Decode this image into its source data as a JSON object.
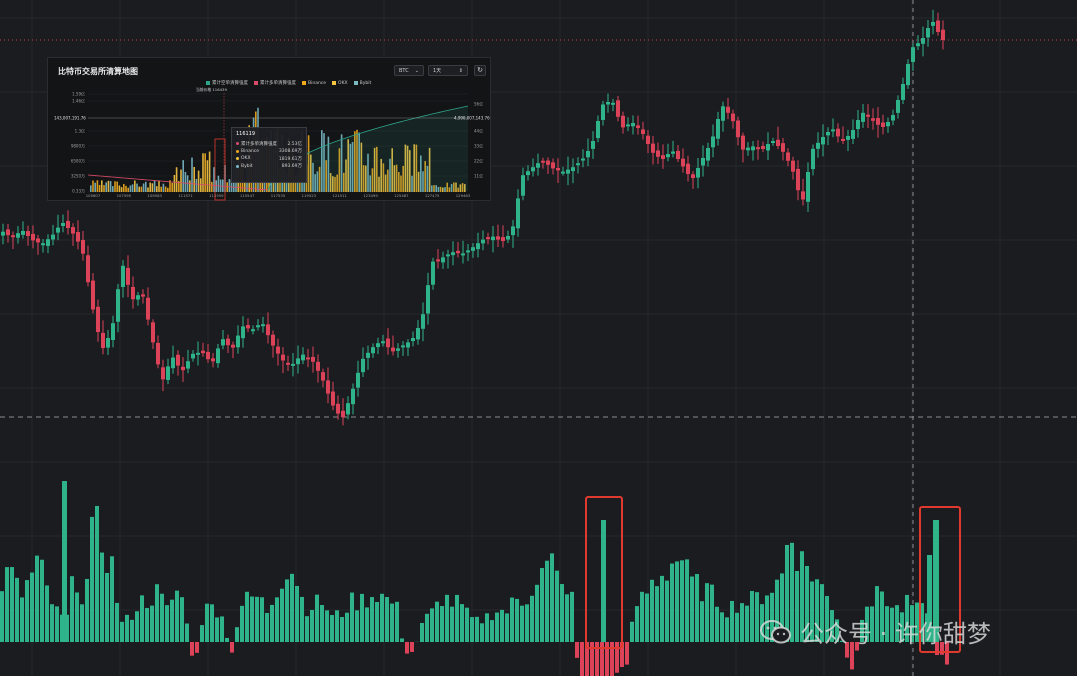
{
  "colors": {
    "background": "#1b1c20",
    "up": "#2fb388",
    "down": "#dc4258",
    "highlight_box": "#e03a2e",
    "grid": "#26282c",
    "inset_long": "#2ea58a",
    "inset_short": "#d74b6a",
    "inset_binance": "#f0a81c",
    "inset_okx": "#f5c542",
    "inset_bybit": "#7ab8c4"
  },
  "chart_data": [
    {
      "type": "candlestick",
      "title": "",
      "legend": "none",
      "grid": true,
      "note": "Values read relative to the embedded inset scale; the main chart prints no axis labels",
      "ohlc_sampled": [
        [
          0,
          236,
          231,
          225,
          243
        ],
        [
          10,
          232,
          238,
          226,
          245
        ],
        [
          20,
          235,
          230,
          222,
          240
        ],
        [
          30,
          233,
          240,
          228,
          247
        ],
        [
          40,
          238,
          244,
          232,
          256
        ],
        [
          50,
          240,
          236,
          230,
          246
        ],
        [
          60,
          236,
          222,
          214,
          240
        ],
        [
          70,
          222,
          232,
          218,
          238
        ],
        [
          80,
          230,
          248,
          226,
          256
        ],
        [
          90,
          250,
          305,
          244,
          315
        ],
        [
          100,
          305,
          350,
          296,
          368
        ],
        [
          110,
          345,
          330,
          320,
          355
        ],
        [
          120,
          330,
          262,
          255,
          335
        ],
        [
          130,
          262,
          300,
          258,
          310
        ],
        [
          140,
          300,
          292,
          286,
          320
        ],
        [
          150,
          292,
          338,
          285,
          345
        ],
        [
          160,
          338,
          382,
          330,
          392
        ],
        [
          170,
          380,
          356,
          349,
          390
        ],
        [
          180,
          356,
          372,
          345,
          380
        ],
        [
          190,
          372,
          354,
          348,
          378
        ],
        [
          200,
          354,
          352,
          345,
          362
        ],
        [
          210,
          352,
          364,
          348,
          370
        ],
        [
          220,
          364,
          338,
          332,
          369
        ],
        [
          230,
          338,
          350,
          332,
          356
        ],
        [
          240,
          350,
          326,
          320,
          356
        ],
        [
          250,
          326,
          330,
          320,
          336
        ],
        [
          260,
          330,
          322,
          316,
          336
        ],
        [
          270,
          322,
          344,
          318,
          350
        ],
        [
          280,
          344,
          360,
          338,
          366
        ],
        [
          290,
          360,
          365,
          356,
          372
        ],
        [
          300,
          365,
          354,
          350,
          370
        ],
        [
          310,
          354,
          360,
          350,
          366
        ],
        [
          320,
          360,
          378,
          355,
          382
        ],
        [
          330,
          378,
          404,
          372,
          412
        ],
        [
          340,
          404,
          420,
          396,
          440
        ],
        [
          350,
          420,
          392,
          385,
          424
        ],
        [
          360,
          392,
          360,
          354,
          396
        ],
        [
          370,
          360,
          348,
          342,
          364
        ],
        [
          380,
          348,
          340,
          336,
          352
        ],
        [
          390,
          340,
          352,
          336,
          356
        ],
        [
          400,
          352,
          346,
          340,
          356
        ],
        [
          410,
          346,
          340,
          336,
          350
        ],
        [
          420,
          340,
          320,
          300,
          344
        ],
        [
          430,
          320,
          262,
          256,
          325
        ],
        [
          440,
          262,
          258,
          250,
          268
        ],
        [
          450,
          258,
          252,
          246,
          262
        ],
        [
          460,
          252,
          254,
          248,
          258
        ],
        [
          470,
          254,
          248,
          242,
          258
        ],
        [
          480,
          248,
          240,
          234,
          252
        ],
        [
          490,
          240,
          236,
          230,
          244
        ],
        [
          500,
          236,
          242,
          230,
          246
        ],
        [
          510,
          242,
          232,
          226,
          248
        ],
        [
          520,
          232,
          176,
          170,
          238
        ],
        [
          530,
          176,
          168,
          160,
          180
        ],
        [
          540,
          168,
          160,
          152,
          172
        ],
        [
          550,
          160,
          168,
          156,
          172
        ],
        [
          560,
          168,
          172,
          160,
          176
        ],
        [
          570,
          172,
          168,
          162,
          178
        ],
        [
          580,
          168,
          160,
          150,
          172
        ],
        [
          590,
          160,
          145,
          136,
          164
        ],
        [
          600,
          145,
          105,
          92,
          150
        ],
        [
          610,
          105,
          100,
          92,
          108
        ],
        [
          620,
          100,
          128,
          120,
          135
        ],
        [
          630,
          128,
          122,
          114,
          132
        ],
        [
          640,
          122,
          132,
          124,
          140
        ],
        [
          650,
          132,
          152,
          144,
          158
        ],
        [
          660,
          152,
          160,
          152,
          168
        ],
        [
          670,
          160,
          150,
          144,
          164
        ],
        [
          680,
          150,
          165,
          156,
          172
        ],
        [
          690,
          165,
          180,
          170,
          190
        ],
        [
          700,
          180,
          160,
          150,
          186
        ],
        [
          710,
          160,
          140,
          132,
          166
        ],
        [
          720,
          140,
          105,
          98,
          146
        ],
        [
          730,
          105,
          118,
          110,
          124
        ],
        [
          740,
          118,
          150,
          138,
          156
        ],
        [
          750,
          150,
          146,
          140,
          156
        ],
        [
          760,
          146,
          150,
          142,
          156
        ],
        [
          770,
          150,
          140,
          132,
          154
        ],
        [
          780,
          140,
          150,
          138,
          158
        ],
        [
          790,
          150,
          168,
          160,
          178
        ],
        [
          800,
          168,
          205,
          198,
          218
        ],
        [
          810,
          205,
          150,
          142,
          210
        ],
        [
          820,
          150,
          138,
          130,
          156
        ],
        [
          830,
          138,
          128,
          120,
          144
        ],
        [
          840,
          128,
          142,
          134,
          150
        ],
        [
          850,
          142,
          132,
          124,
          148
        ],
        [
          860,
          132,
          112,
          104,
          138
        ],
        [
          870,
          112,
          120,
          112,
          128
        ],
        [
          880,
          120,
          128,
          118,
          132
        ],
        [
          890,
          128,
          118,
          110,
          132
        ],
        [
          900,
          118,
          88,
          78,
          124
        ],
        [
          910,
          88,
          48,
          38,
          94
        ],
        [
          920,
          48,
          40,
          20,
          54
        ],
        [
          930,
          40,
          20,
          8,
          46
        ],
        [
          940,
          20,
          40,
          30,
          48
        ]
      ]
    },
    {
      "type": "bar",
      "title": "",
      "legend": "none",
      "note": "Net liquidation histogram, sampled values (positive = green, negative = red)",
      "values": [
        60,
        70,
        45,
        62,
        80,
        48,
        30,
        20,
        72,
        38,
        115,
        100,
        75,
        18,
        25,
        40,
        42,
        50,
        32,
        52,
        35,
        -30,
        32,
        35,
        30,
        -18,
        36,
        44,
        45,
        30,
        55,
        75,
        70,
        33,
        38,
        40,
        25,
        28,
        40,
        40,
        45,
        50,
        42,
        38,
        -15,
        -8,
        22,
        30,
        45,
        40,
        38,
        24,
        20,
        26,
        32,
        30,
        42,
        40,
        60,
        70,
        78,
        52,
        62,
        -45,
        -55,
        -52,
        -60,
        -30,
        -32,
        35,
        45,
        60,
        68,
        78,
        88,
        60,
        55,
        50,
        42,
        32,
        38,
        40,
        42,
        48,
        55,
        62,
        118,
        82,
        75,
        60,
        45,
        30,
        -15,
        -30,
        42,
        40,
        52,
        35,
        32,
        40,
        30,
        36,
        -12,
        -20,
        -8,
        30,
        40,
        52,
        38,
        30,
        48,
        55,
        80,
        118,
        132
      ]
    },
    {
      "type": "bar",
      "title": "比特币交易所清算地图",
      "legend": "top",
      "grid": true,
      "series": [
        {
          "name": "累计空单清算强度"
        },
        {
          "name": "累计多单清算强度"
        },
        {
          "name": "Binance"
        },
        {
          "name": "OKX"
        },
        {
          "name": "Bybit"
        }
      ],
      "y_ticks": [
        "1.59亿",
        "1.46亿",
        "1.3亿",
        "9800万",
        "6500万",
        "3250万",
        "0.33万"
      ],
      "y2_ticks": [
        "56亿",
        "44亿",
        "33亿",
        "22亿",
        "11亿"
      ],
      "x_ticks": [
        "105607",
        "107595",
        "109583",
        "111571",
        "113559",
        "115547",
        "117535",
        "119523",
        "121511",
        "123499",
        "125487",
        "127475",
        "129463"
      ],
      "price_marker": "143,007,191.76",
      "right_marker": "4,990,007,143.76",
      "current_price_label": "当前价格 116439"
    }
  ],
  "inset": {
    "title": "比特币交易所清算地图",
    "symbol_select": "BTC",
    "period_select": "1天",
    "refresh_icon": "refresh-icon",
    "tooltip": {
      "date": "116119",
      "rows": [
        {
          "label": "累计多单清算强度",
          "value": "2.53亿"
        },
        {
          "label": "Binance",
          "value": "3308.69万"
        },
        {
          "label": "OKX",
          "value": "1819.61万"
        },
        {
          "label": "Bybit",
          "value": "893.69万"
        }
      ]
    }
  },
  "watermark": {
    "text": "公众号 · 许你甜梦",
    "icon": "wechat-icon"
  }
}
